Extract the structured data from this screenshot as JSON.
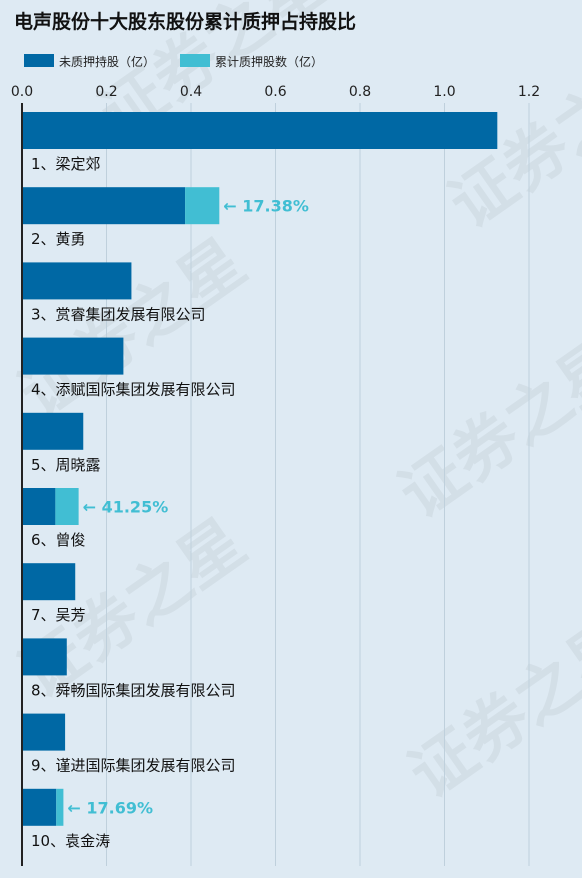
{
  "title": "电声股份十大股东股份累计质押占持股比",
  "legend": [
    {
      "label": "未质押持股（亿）",
      "color": "#0068a4"
    },
    {
      "label": "累计质押股数（亿）",
      "color": "#41bed3"
    }
  ],
  "watermark": "证券之星",
  "chart_data": {
    "type": "bar",
    "orientation": "horizontal",
    "stacked": true,
    "xlim": [
      0,
      1.2
    ],
    "xticks": [
      "0.0",
      "0.2",
      "0.4",
      "0.6",
      "0.8",
      "1.0",
      "1.2"
    ],
    "grid": true,
    "legend_position": "top-left",
    "categories": [
      "1、梁定郊",
      "2、黄勇",
      "3、赏睿集团发展有限公司",
      "4、添赋国际集团发展有限公司",
      "5、周晓露",
      "6、曾俊",
      "7、吴芳",
      "8、舜畅国际集团发展有限公司",
      "9、谨进国际集团发展有限公司",
      "10、袁金涛"
    ],
    "series": [
      {
        "name": "未质押持股（亿）",
        "color": "#0068a4",
        "values": [
          1.125,
          0.386,
          0.259,
          0.24,
          0.145,
          0.079,
          0.126,
          0.106,
          0.102,
          0.081
        ]
      },
      {
        "name": "累计质押股数（亿）",
        "color": "#41bed3",
        "values": [
          0,
          0.081,
          0,
          0,
          0,
          0.055,
          0,
          0,
          0,
          0.017
        ]
      }
    ],
    "annotations": [
      {
        "index": 1,
        "text": "← 17.38%"
      },
      {
        "index": 5,
        "text": "← 41.25%"
      },
      {
        "index": 9,
        "text": "← 17.69%"
      }
    ]
  }
}
